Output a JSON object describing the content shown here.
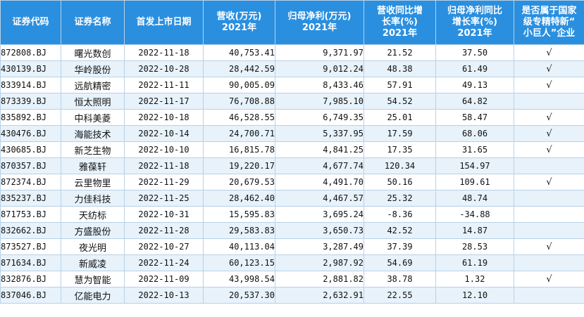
{
  "header": {
    "code": "证券代码",
    "name": "证券名称",
    "list_date": "首发上市日期",
    "revenue_l1": "营收(万元)",
    "revenue_l2": "2021年",
    "profit_l1": "归母净利(万元)",
    "profit_l2": "2021年",
    "rev_growth_l1": "营收同比增",
    "rev_growth_l2": "长率(%)",
    "rev_growth_l3": "2021年",
    "profit_growth_l1": "归母净利同比",
    "profit_growth_l2": "增长率(%)",
    "profit_growth_l3": "2021年",
    "little_giant_l1": "是否属于国家",
    "little_giant_l2": "级专精特新“",
    "little_giant_l3": "小巨人”企业"
  },
  "rows": [
    {
      "code": "872808.BJ",
      "name": "曙光数创",
      "date": "2022-11-18",
      "revenue": "40,753.41",
      "profit": "9,371.97",
      "rev_growth": "21.52",
      "profit_growth": "37.50",
      "mark": "√"
    },
    {
      "code": "430139.BJ",
      "name": "华岭股份",
      "date": "2022-10-28",
      "revenue": "28,442.59",
      "profit": "9,012.24",
      "rev_growth": "48.38",
      "profit_growth": "61.49",
      "mark": "√"
    },
    {
      "code": "833914.BJ",
      "name": "远航精密",
      "date": "2022-11-11",
      "revenue": "90,005.09",
      "profit": "8,433.46",
      "rev_growth": "57.91",
      "profit_growth": "49.13",
      "mark": "√"
    },
    {
      "code": "873339.BJ",
      "name": "恒太照明",
      "date": "2022-11-17",
      "revenue": "76,708.88",
      "profit": "7,985.10",
      "rev_growth": "54.52",
      "profit_growth": "64.82",
      "mark": ""
    },
    {
      "code": "835892.BJ",
      "name": "中科美菱",
      "date": "2022-10-18",
      "revenue": "46,528.55",
      "profit": "6,749.35",
      "rev_growth": "25.01",
      "profit_growth": "58.47",
      "mark": "√"
    },
    {
      "code": "430476.BJ",
      "name": "海能技术",
      "date": "2022-10-14",
      "revenue": "24,700.71",
      "profit": "5,337.95",
      "rev_growth": "17.59",
      "profit_growth": "68.06",
      "mark": "√"
    },
    {
      "code": "430685.BJ",
      "name": "新芝生物",
      "date": "2022-10-10",
      "revenue": "16,815.78",
      "profit": "4,841.25",
      "rev_growth": "17.35",
      "profit_growth": "31.65",
      "mark": "√"
    },
    {
      "code": "870357.BJ",
      "name": "雅葆轩",
      "date": "2022-11-18",
      "revenue": "19,220.17",
      "profit": "4,677.74",
      "rev_growth": "120.34",
      "profit_growth": "154.97",
      "mark": ""
    },
    {
      "code": "872374.BJ",
      "name": "云里物里",
      "date": "2022-11-29",
      "revenue": "20,679.53",
      "profit": "4,491.70",
      "rev_growth": "50.16",
      "profit_growth": "109.61",
      "mark": "√"
    },
    {
      "code": "835237.BJ",
      "name": "力佳科技",
      "date": "2022-11-25",
      "revenue": "28,462.40",
      "profit": "4,467.57",
      "rev_growth": "25.32",
      "profit_growth": "48.74",
      "mark": ""
    },
    {
      "code": "871753.BJ",
      "name": "天纺标",
      "date": "2022-10-31",
      "revenue": "15,595.83",
      "profit": "3,695.24",
      "rev_growth": "-8.36",
      "profit_growth": "-34.88",
      "mark": ""
    },
    {
      "code": "832662.BJ",
      "name": "方盛股份",
      "date": "2022-11-28",
      "revenue": "29,583.83",
      "profit": "3,650.73",
      "rev_growth": "42.52",
      "profit_growth": "14.87",
      "mark": ""
    },
    {
      "code": "873527.BJ",
      "name": "夜光明",
      "date": "2022-10-27",
      "revenue": "40,113.04",
      "profit": "3,287.49",
      "rev_growth": "37.39",
      "profit_growth": "28.53",
      "mark": "√"
    },
    {
      "code": "871634.BJ",
      "name": "新威凌",
      "date": "2022-11-24",
      "revenue": "60,123.15",
      "profit": "2,987.92",
      "rev_growth": "54.69",
      "profit_growth": "61.19",
      "mark": ""
    },
    {
      "code": "832876.BJ",
      "name": "慧为智能",
      "date": "2022-11-09",
      "revenue": "43,998.54",
      "profit": "2,881.82",
      "rev_growth": "38.78",
      "profit_growth": "1.32",
      "mark": "√"
    },
    {
      "code": "837046.BJ",
      "name": "亿能电力",
      "date": "2022-10-13",
      "revenue": "20,537.30",
      "profit": "2,632.91",
      "rev_growth": "22.55",
      "profit_growth": "12.10",
      "mark": ""
    }
  ]
}
